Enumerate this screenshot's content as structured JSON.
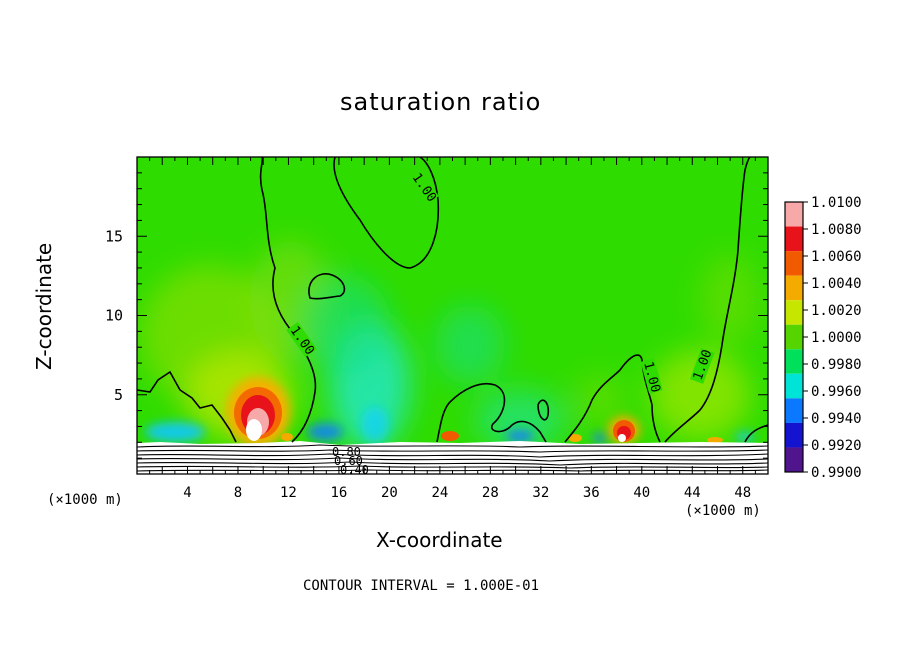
{
  "chart_data": {
    "type": "heatmap",
    "title": "saturation ratio",
    "xlabel": "X-coordinate",
    "ylabel": "Z-coordinate",
    "x_unit": "(×1000 m)",
    "y_unit": "(×1000 m)",
    "xlim": [
      0,
      50
    ],
    "ylim": [
      0,
      20
    ],
    "x_ticks": [
      "4",
      "8",
      "12",
      "16",
      "20",
      "24",
      "28",
      "32",
      "36",
      "40",
      "44",
      "48"
    ],
    "y_ticks": [
      "5",
      "10",
      "15"
    ],
    "contour_interval_text": "CONTOUR INTERVAL = 1.000E-01",
    "contour_labels": [
      "1.00",
      "1.00",
      "1.00",
      "1.00",
      "0.80",
      "0.60",
      "0.40"
    ],
    "colorbar": {
      "levels": [
        "1.0100",
        "1.0080",
        "1.0060",
        "1.0040",
        "1.0020",
        "1.0000",
        "0.9980",
        "0.9960",
        "0.9940",
        "0.9920",
        "0.9900"
      ],
      "colors": [
        "#f7a8a8",
        "#e8121a",
        "#f25a00",
        "#f5aa00",
        "#c6e600",
        "#55d400",
        "#00e05a",
        "#00e4d8",
        "#0a78ff",
        "#1414d0",
        "#50148c"
      ]
    }
  }
}
